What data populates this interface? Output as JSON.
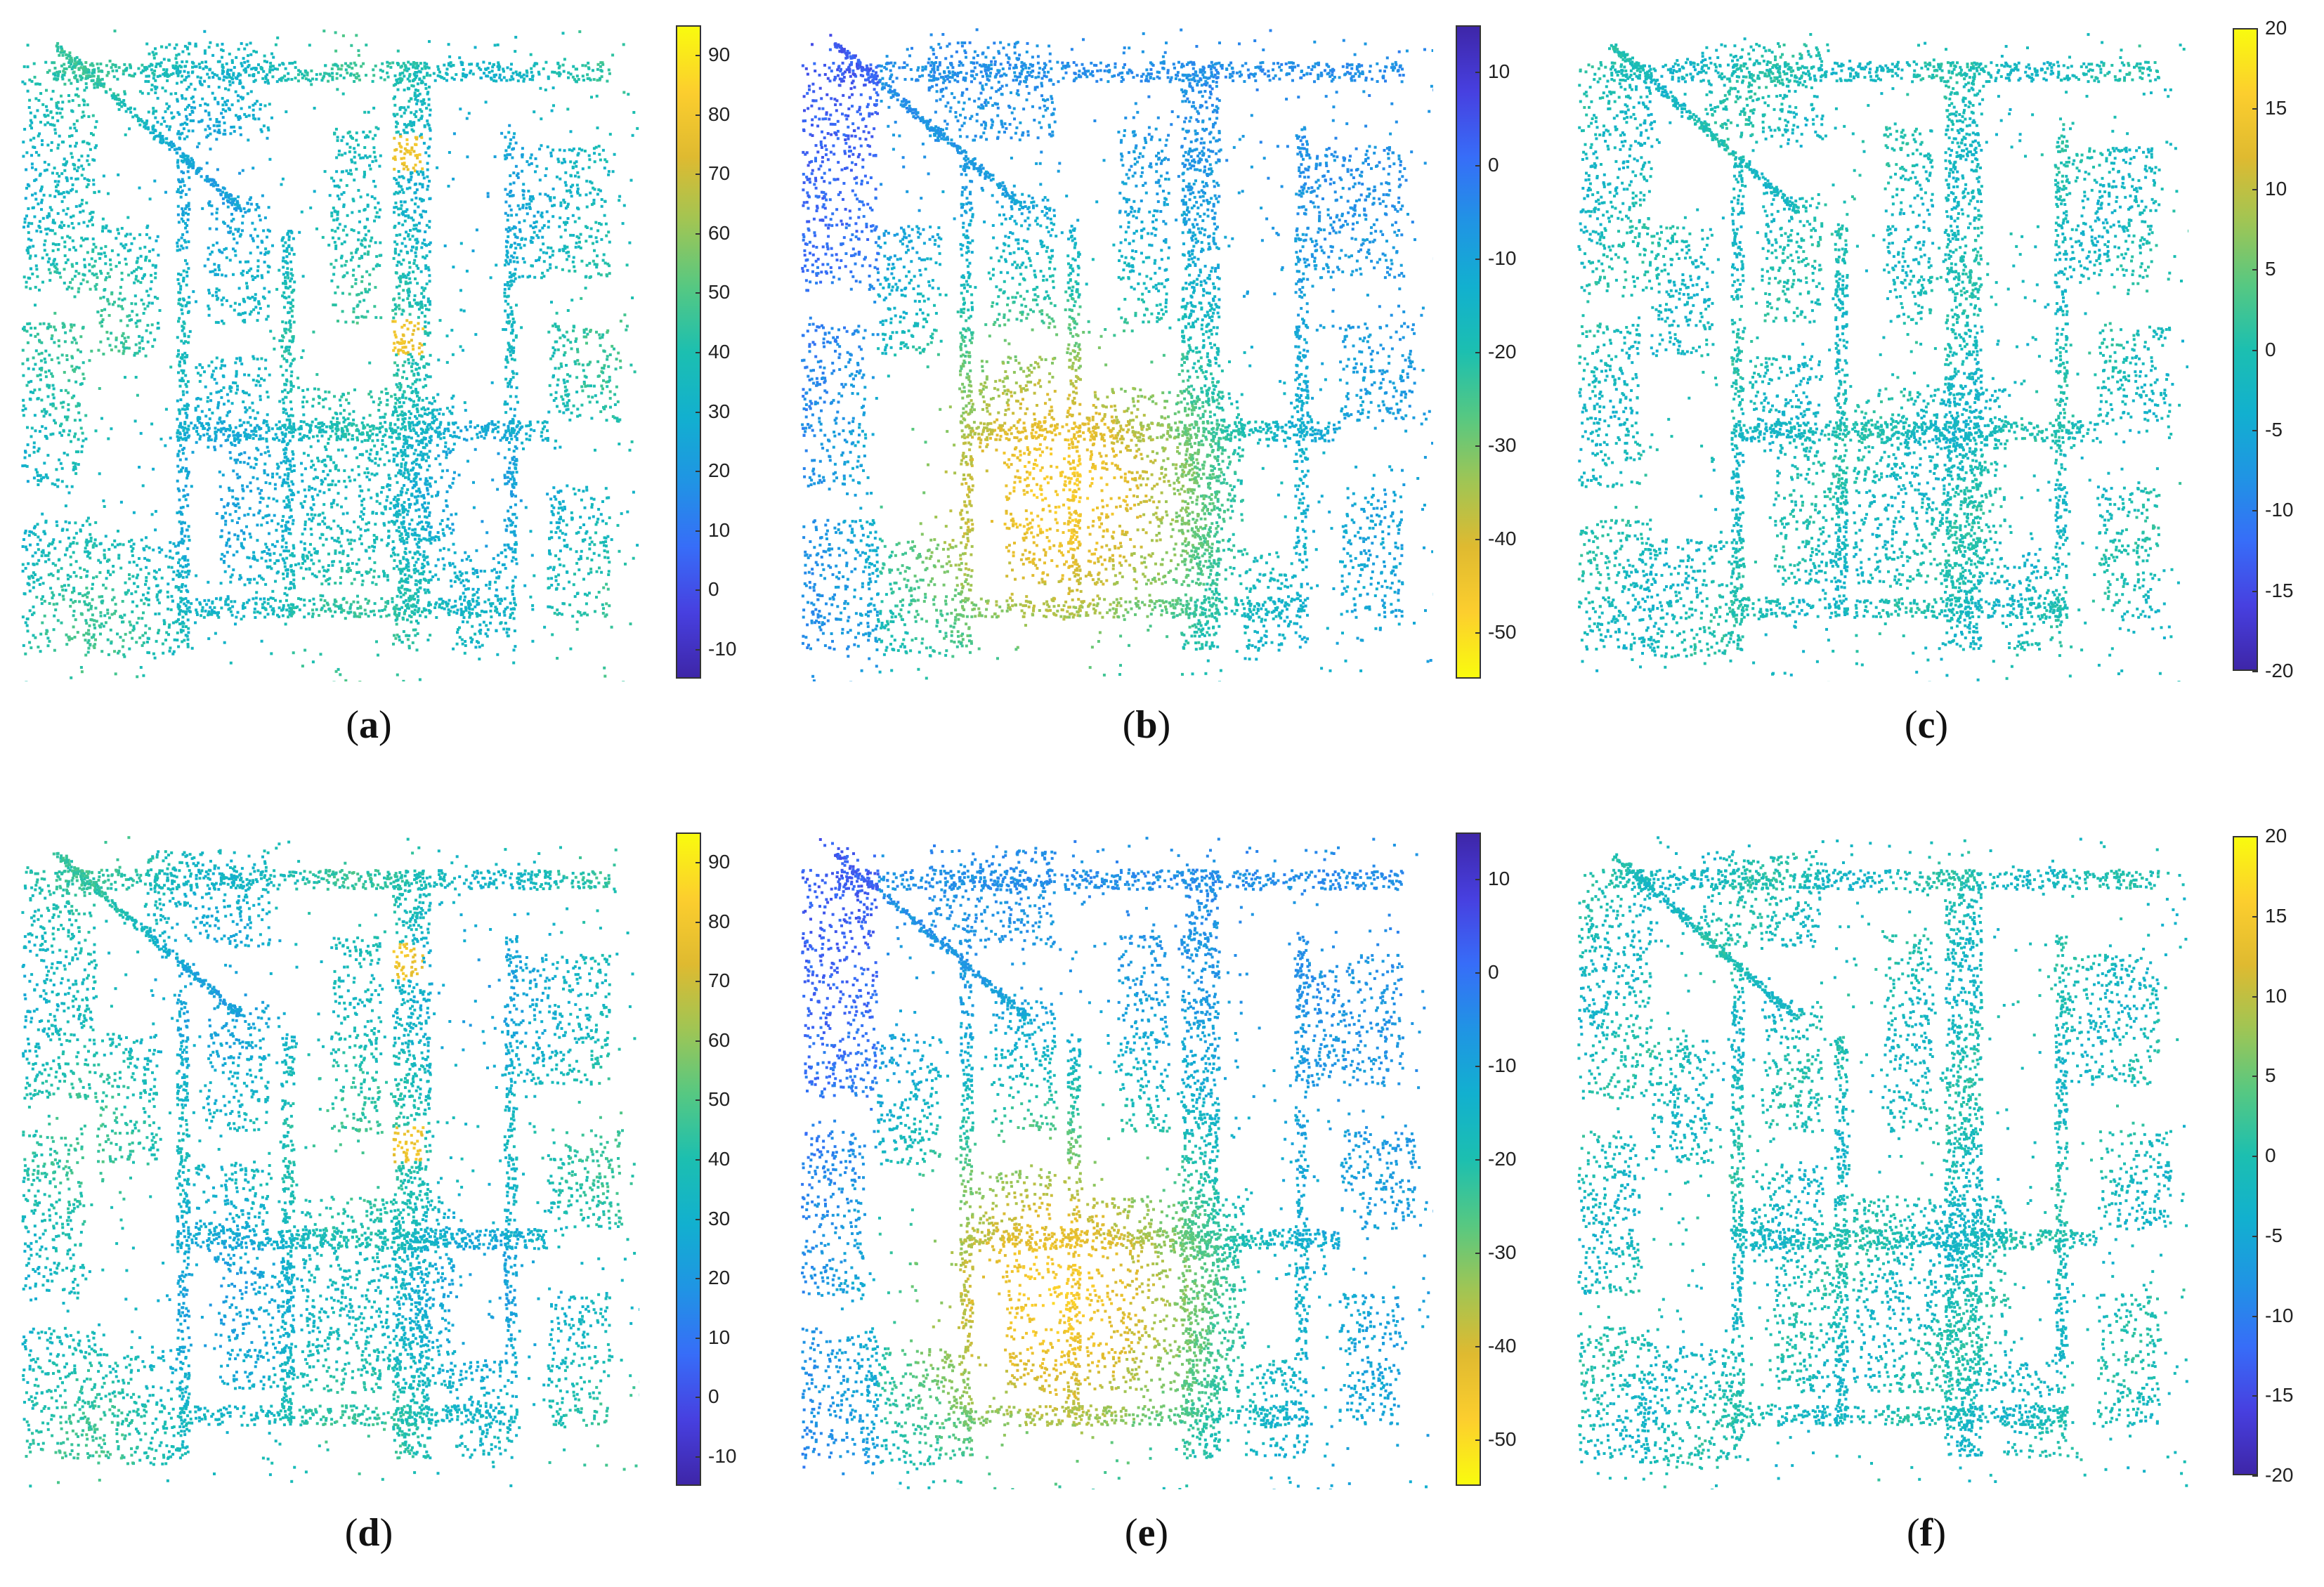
{
  "chart_data": [
    {
      "type": "heatmap",
      "panel": "a",
      "caption": "(a)",
      "colormap": "parula",
      "clim": [
        -15,
        95
      ],
      "cbar_ticks": [
        -10,
        0,
        10,
        20,
        30,
        40,
        50,
        60,
        70,
        80,
        90
      ],
      "reversed": false
    },
    {
      "type": "heatmap",
      "panel": "b",
      "caption": "(b)",
      "colormap": "parula",
      "clim": [
        -55,
        15
      ],
      "cbar_ticks": [
        10,
        0,
        -10,
        -20,
        -30,
        -40,
        -50
      ],
      "reversed": true
    },
    {
      "type": "heatmap",
      "panel": "c",
      "caption": "(c)",
      "colormap": "parula",
      "clim": [
        -20,
        20
      ],
      "cbar_ticks": [
        20,
        15,
        10,
        5,
        0,
        -5,
        -10,
        -15,
        -20
      ],
      "reversed": false
    },
    {
      "type": "heatmap",
      "panel": "d",
      "caption": "(d)",
      "colormap": "parula",
      "clim": [
        -15,
        95
      ],
      "cbar_ticks": [
        -10,
        0,
        10,
        20,
        30,
        40,
        50,
        60,
        70,
        80,
        90
      ],
      "reversed": false
    },
    {
      "type": "heatmap",
      "panel": "e",
      "caption": "(e)",
      "colormap": "parula",
      "clim": [
        -55,
        15
      ],
      "cbar_ticks": [
        10,
        0,
        -10,
        -20,
        -30,
        -40,
        -50
      ],
      "reversed": true
    },
    {
      "type": "heatmap",
      "panel": "f",
      "caption": "(f)",
      "colormap": "parula",
      "clim": [
        -20,
        20
      ],
      "cbar_ticks": [
        20,
        15,
        10,
        5,
        0,
        -5,
        -10,
        -15,
        -20
      ],
      "reversed": false
    }
  ]
}
